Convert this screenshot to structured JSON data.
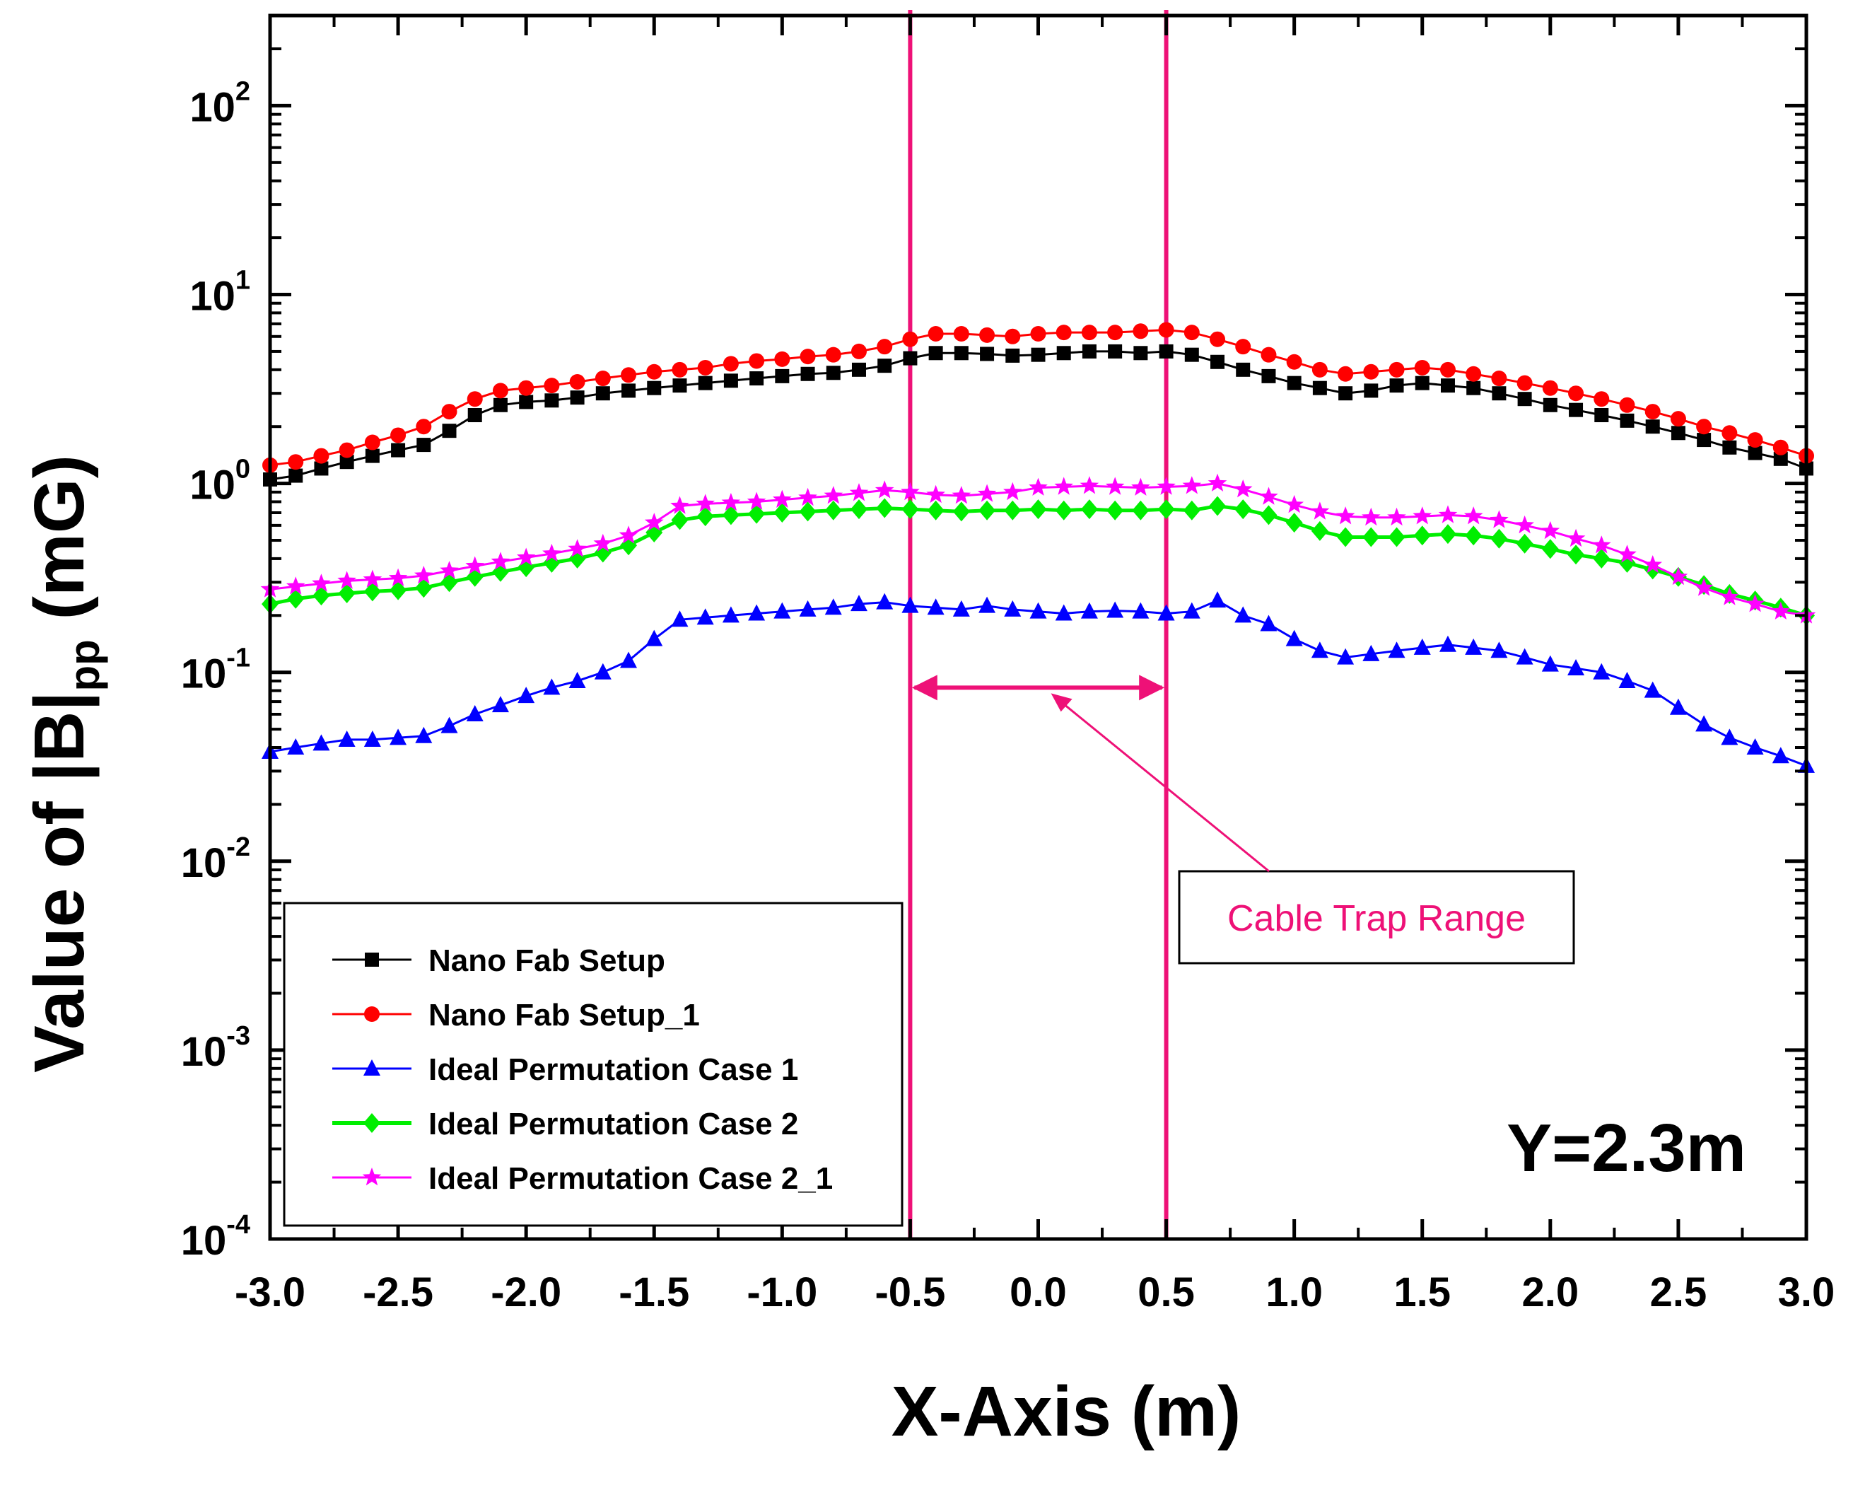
{
  "chart_data": {
    "type": "line",
    "yscale": "log",
    "xlabel": "X-Axis (m)",
    "ylabel": {
      "prefix": "Value of |B|",
      "subscript": "pp",
      "suffix": " (mG)"
    },
    "xlim": [
      -3.0,
      3.0
    ],
    "ylim": [
      0.0001,
      300
    ],
    "xticks": [
      -3.0,
      -2.5,
      -2.0,
      -1.5,
      -1.0,
      -0.5,
      0.0,
      0.5,
      1.0,
      1.5,
      2.0,
      2.5,
      3.0
    ],
    "xtick_labels": [
      "-3.0",
      "-2.5",
      "-2.0",
      "-1.5",
      "-1.0",
      "-0.5",
      "0.0",
      "0.5",
      "1.0",
      "1.5",
      "2.0",
      "2.5",
      "3.0"
    ],
    "yticks": [
      {
        "value": 100,
        "base": "10",
        "exp": "2"
      },
      {
        "value": 10,
        "base": "10",
        "exp": "1"
      },
      {
        "value": 1,
        "base": "10",
        "exp": "0"
      },
      {
        "value": 0.1,
        "base": "10",
        "exp": "-1"
      },
      {
        "value": 0.01,
        "base": "10",
        "exp": "-2"
      },
      {
        "value": 0.001,
        "base": "10",
        "exp": "-3"
      },
      {
        "value": 0.0001,
        "base": "10",
        "exp": "-4"
      }
    ],
    "x_step": 0.1,
    "series": [
      {
        "name": "Nano Fab Setup",
        "color": "#000000",
        "marker": "square",
        "values": [
          1.05,
          1.1,
          1.2,
          1.3,
          1.4,
          1.5,
          1.6,
          1.9,
          2.3,
          2.6,
          2.7,
          2.75,
          2.85,
          3.0,
          3.1,
          3.2,
          3.3,
          3.4,
          3.5,
          3.6,
          3.7,
          3.8,
          3.85,
          4.0,
          4.2,
          4.6,
          4.9,
          4.9,
          4.85,
          4.75,
          4.8,
          4.9,
          5.0,
          5.0,
          4.9,
          5.0,
          4.8,
          4.4,
          4.0,
          3.7,
          3.4,
          3.2,
          3.0,
          3.1,
          3.3,
          3.4,
          3.3,
          3.2,
          3.0,
          2.8,
          2.6,
          2.45,
          2.3,
          2.15,
          2.0,
          1.85,
          1.7,
          1.55,
          1.45,
          1.35,
          1.2
        ]
      },
      {
        "name": "Nano Fab Setup_1",
        "color": "#ff0000",
        "marker": "circle",
        "values": [
          1.25,
          1.3,
          1.4,
          1.5,
          1.65,
          1.8,
          2.0,
          2.4,
          2.8,
          3.1,
          3.2,
          3.3,
          3.45,
          3.6,
          3.75,
          3.9,
          4.0,
          4.1,
          4.3,
          4.45,
          4.55,
          4.7,
          4.8,
          5.0,
          5.3,
          5.8,
          6.2,
          6.2,
          6.1,
          6.0,
          6.2,
          6.3,
          6.3,
          6.3,
          6.4,
          6.5,
          6.3,
          5.8,
          5.3,
          4.8,
          4.4,
          4.0,
          3.8,
          3.9,
          4.0,
          4.1,
          4.0,
          3.8,
          3.6,
          3.4,
          3.2,
          3.0,
          2.8,
          2.6,
          2.4,
          2.2,
          2.0,
          1.85,
          1.7,
          1.55,
          1.4
        ]
      },
      {
        "name": "Ideal Permutation Case 1",
        "color": "#0000ff",
        "marker": "triangle",
        "values": [
          0.038,
          0.04,
          0.042,
          0.044,
          0.044,
          0.045,
          0.046,
          0.052,
          0.06,
          0.067,
          0.075,
          0.083,
          0.09,
          0.1,
          0.115,
          0.15,
          0.19,
          0.195,
          0.2,
          0.205,
          0.21,
          0.215,
          0.22,
          0.23,
          0.235,
          0.225,
          0.22,
          0.215,
          0.225,
          0.215,
          0.21,
          0.205,
          0.21,
          0.212,
          0.21,
          0.205,
          0.21,
          0.24,
          0.2,
          0.18,
          0.15,
          0.13,
          0.12,
          0.125,
          0.13,
          0.135,
          0.14,
          0.135,
          0.13,
          0.12,
          0.11,
          0.105,
          0.1,
          0.09,
          0.08,
          0.065,
          0.053,
          0.045,
          0.04,
          0.036,
          0.032
        ]
      },
      {
        "name": "Ideal Permutation Case 2",
        "color": "#00ee00",
        "marker": "diamond",
        "values": [
          0.23,
          0.245,
          0.255,
          0.262,
          0.268,
          0.272,
          0.28,
          0.3,
          0.32,
          0.34,
          0.36,
          0.38,
          0.4,
          0.43,
          0.47,
          0.55,
          0.64,
          0.67,
          0.68,
          0.69,
          0.7,
          0.71,
          0.72,
          0.73,
          0.74,
          0.73,
          0.72,
          0.71,
          0.72,
          0.72,
          0.73,
          0.72,
          0.73,
          0.72,
          0.72,
          0.73,
          0.72,
          0.76,
          0.73,
          0.68,
          0.62,
          0.56,
          0.52,
          0.52,
          0.52,
          0.53,
          0.54,
          0.53,
          0.51,
          0.48,
          0.45,
          0.42,
          0.4,
          0.38,
          0.35,
          0.32,
          0.29,
          0.26,
          0.24,
          0.22,
          0.2
        ]
      },
      {
        "name": "Ideal Permutation Case 2_1",
        "color": "#ff00ff",
        "marker": "star",
        "values": [
          0.275,
          0.285,
          0.295,
          0.305,
          0.31,
          0.315,
          0.325,
          0.345,
          0.365,
          0.385,
          0.405,
          0.425,
          0.45,
          0.48,
          0.53,
          0.62,
          0.76,
          0.78,
          0.79,
          0.8,
          0.82,
          0.84,
          0.86,
          0.89,
          0.92,
          0.9,
          0.87,
          0.86,
          0.88,
          0.9,
          0.95,
          0.96,
          0.97,
          0.96,
          0.95,
          0.96,
          0.97,
          1.0,
          0.93,
          0.85,
          0.77,
          0.71,
          0.67,
          0.66,
          0.66,
          0.67,
          0.68,
          0.67,
          0.64,
          0.6,
          0.56,
          0.51,
          0.47,
          0.42,
          0.37,
          0.32,
          0.28,
          0.25,
          0.23,
          0.21,
          0.2
        ]
      }
    ],
    "vertical_lines": [
      -0.5,
      0.5
    ],
    "range_arrow": {
      "from": -0.5,
      "to": 0.5,
      "y": 0.083,
      "color": "#ee1177"
    },
    "annotation": {
      "text": "Cable Trap Range",
      "color": "#ee1177",
      "arrow_target_x": 0.05,
      "arrow_target_y": 0.083
    },
    "corner_label": "Y=2.3m",
    "legend_position": "bottom-left"
  }
}
